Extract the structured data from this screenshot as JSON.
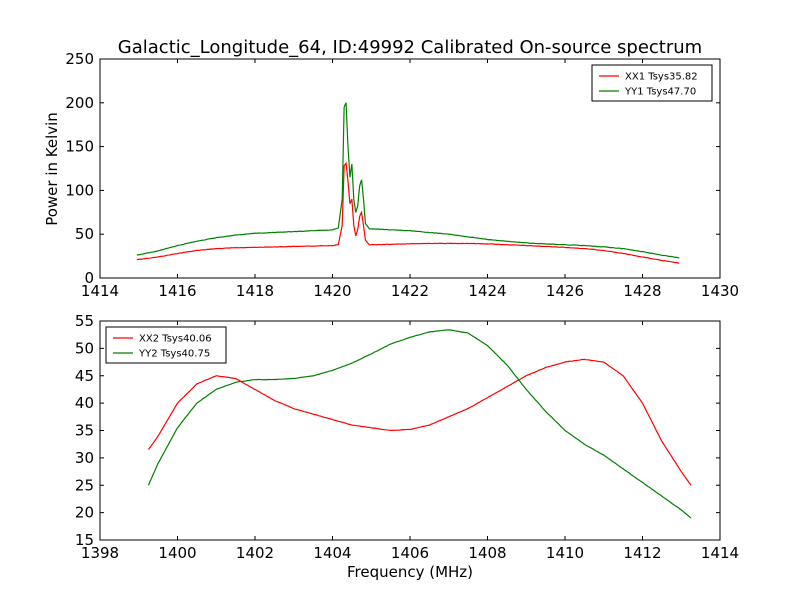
{
  "chart_data": [
    {
      "type": "line",
      "title": "Galactic_Longitude_64, ID:49992 Calibrated On-source spectrum",
      "xlabel": "",
      "ylabel": "Power in Kelvin",
      "xlim": [
        1414,
        1430
      ],
      "ylim": [
        0,
        250
      ],
      "xticks": [
        "1414",
        "1416",
        "1418",
        "1420",
        "1422",
        "1424",
        "1426",
        "1428",
        "1430"
      ],
      "yticks": [
        "0",
        "50",
        "100",
        "150",
        "200",
        "250"
      ],
      "grid": false,
      "legend_position": "top-right",
      "series": [
        {
          "name": "XX1 Tsys35.82",
          "color": "#ff0000",
          "x": [
            1414.95,
            1415.5,
            1416,
            1416.5,
            1417,
            1417.5,
            1418,
            1418.5,
            1419,
            1419.5,
            1420,
            1420.15,
            1420.25,
            1420.3,
            1420.35,
            1420.4,
            1420.45,
            1420.5,
            1420.55,
            1420.6,
            1420.65,
            1420.7,
            1420.75,
            1420.8,
            1420.85,
            1420.95,
            1421.1,
            1421.5,
            1422,
            1422.5,
            1423,
            1423.5,
            1424,
            1424.5,
            1425,
            1425.5,
            1426,
            1426.5,
            1427,
            1427.5,
            1428,
            1428.5,
            1428.95
          ],
          "values": [
            21,
            24,
            28,
            31.5,
            33.5,
            34.5,
            35,
            35.5,
            36,
            36.5,
            37,
            38,
            60,
            128,
            131,
            110,
            85,
            90,
            60,
            48,
            55,
            70,
            75,
            60,
            43,
            38,
            38,
            38.5,
            39,
            39.5,
            39.5,
            39.5,
            39,
            38,
            37,
            36,
            35,
            33.5,
            31.5,
            28,
            24,
            20,
            17
          ]
        },
        {
          "name": "YY1 Tsys47.70",
          "color": "#008000",
          "x": [
            1414.95,
            1415.5,
            1416,
            1416.5,
            1417,
            1417.5,
            1418,
            1418.5,
            1419,
            1419.5,
            1420,
            1420.15,
            1420.25,
            1420.3,
            1420.35,
            1420.4,
            1420.45,
            1420.5,
            1420.55,
            1420.6,
            1420.65,
            1420.7,
            1420.75,
            1420.8,
            1420.85,
            1420.95,
            1421.1,
            1421.5,
            1422,
            1422.5,
            1423,
            1423.5,
            1424,
            1424.5,
            1425,
            1425.5,
            1426,
            1426.5,
            1427,
            1427.5,
            1428,
            1428.5,
            1428.95
          ],
          "values": [
            26,
            31,
            37,
            42,
            46,
            49,
            51,
            52,
            53,
            54,
            55,
            57,
            90,
            195,
            200,
            150,
            115,
            130,
            90,
            75,
            82,
            105,
            112,
            90,
            62,
            56,
            56,
            55,
            54,
            52,
            50,
            47,
            44,
            42,
            40,
            39,
            38,
            37,
            35.5,
            33.5,
            30,
            26,
            23
          ]
        }
      ]
    },
    {
      "type": "line",
      "title": "",
      "xlabel": "Frequency (MHz)",
      "ylabel": "",
      "xlim": [
        1398,
        1414
      ],
      "ylim": [
        15,
        55
      ],
      "xticks": [
        "1398",
        "1400",
        "1402",
        "1404",
        "1406",
        "1408",
        "1410",
        "1412",
        "1414"
      ],
      "yticks": [
        "15",
        "20",
        "25",
        "30",
        "35",
        "40",
        "45",
        "50",
        "55"
      ],
      "grid": false,
      "legend_position": "top-left",
      "series": [
        {
          "name": "XX2 Tsys40.06",
          "color": "#ff0000",
          "x": [
            1399.25,
            1399.5,
            1400,
            1400.5,
            1401,
            1401.5,
            1402,
            1402.5,
            1403,
            1403.5,
            1404,
            1404.5,
            1405,
            1405.5,
            1406,
            1406.5,
            1407,
            1407.5,
            1408,
            1408.5,
            1409,
            1409.5,
            1410,
            1410.5,
            1411,
            1411.5,
            1412,
            1412.5,
            1413,
            1413.25
          ],
          "values": [
            31.5,
            34,
            40,
            43.5,
            45,
            44.5,
            42.5,
            40.5,
            39,
            38,
            37,
            36,
            35.5,
            35,
            35.2,
            36,
            37.5,
            39,
            41,
            43,
            45,
            46.5,
            47.5,
            48,
            47.5,
            45,
            40,
            33,
            27.5,
            25
          ]
        },
        {
          "name": "YY2 Tsys40.75",
          "color": "#008000",
          "x": [
            1399.25,
            1399.5,
            1400,
            1400.5,
            1401,
            1401.5,
            1402,
            1402.5,
            1403,
            1403.5,
            1404,
            1404.5,
            1405,
            1405.5,
            1406,
            1406.5,
            1407,
            1407.5,
            1408,
            1408.5,
            1409,
            1409.5,
            1410,
            1410.5,
            1411,
            1411.5,
            1412,
            1412.5,
            1413,
            1413.25
          ],
          "values": [
            25,
            29,
            35.5,
            40,
            42.5,
            43.8,
            44.3,
            44.3,
            44.5,
            45,
            46,
            47.3,
            49,
            50.8,
            52,
            53,
            53.4,
            52.8,
            50.5,
            47,
            42.5,
            38.5,
            35,
            32.5,
            30.5,
            28,
            25.5,
            23,
            20.5,
            19
          ]
        }
      ]
    }
  ]
}
